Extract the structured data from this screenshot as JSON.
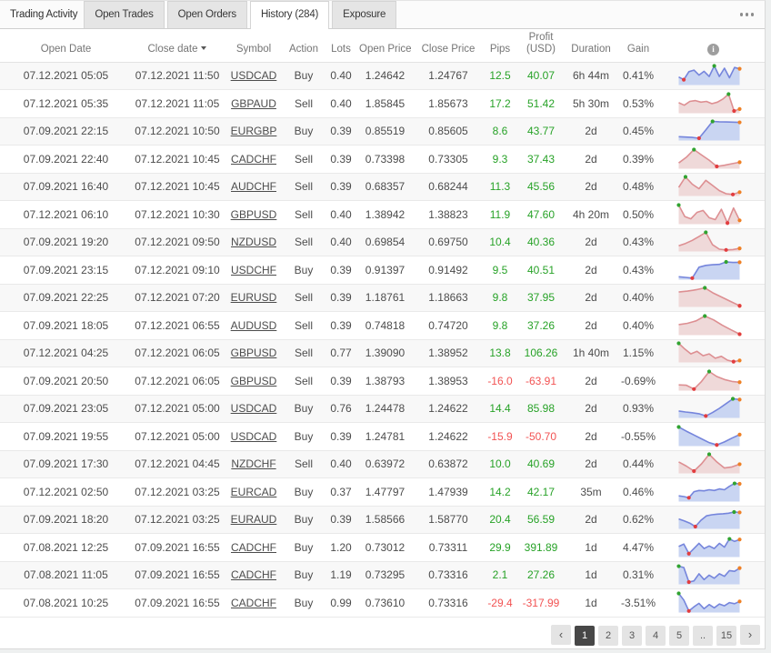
{
  "widget": {
    "title": "Trading Activity",
    "tabs": [
      {
        "label": "Open Trades",
        "active": false
      },
      {
        "label": "Open Orders",
        "active": false
      },
      {
        "label": "History (284)",
        "active": true
      },
      {
        "label": "Exposure",
        "active": false
      }
    ]
  },
  "colors": {
    "positive_text": "#27a227",
    "negative_text": "#f25353",
    "buy_line": "#7585dc",
    "buy_fill": "#c9d5f2",
    "sell_line": "#dd8f92",
    "sell_fill": "#efd9d9",
    "dot_max": "#30a330",
    "dot_min": "#e23d3f",
    "dot_last": "#ef8025"
  },
  "table": {
    "columns": [
      "Open Date",
      "Close date",
      "Symbol",
      "Action",
      "Lots",
      "Open Price",
      "Close Price",
      "Pips",
      "Profit (USD)",
      "Duration",
      "Gain"
    ],
    "sorted_by": "Close date",
    "rows": [
      {
        "open_date": "07.12.2021 05:05",
        "close_date": "07.12.2021 11:50",
        "symbol": "USDCAD",
        "action": "Buy",
        "lots": "0.40",
        "open_price": "1.24642",
        "close_price": "1.24767",
        "pips": "12.5",
        "profit": "40.07",
        "duration": "6h 44m",
        "gain": "0.41%",
        "chart_color": "buy",
        "spark": [
          0.42,
          0.28,
          0.7,
          0.78,
          0.52,
          0.72,
          0.45,
          1.0,
          0.45,
          0.88,
          0.38,
          0.92,
          0.85
        ]
      },
      {
        "open_date": "07.12.2021 05:35",
        "close_date": "07.12.2021 11:05",
        "symbol": "GBPAUD",
        "action": "Sell",
        "lots": "0.40",
        "open_price": "1.85845",
        "close_price": "1.85673",
        "pips": "17.2",
        "profit": "51.42",
        "duration": "5h 30m",
        "gain": "0.53%",
        "chart_color": "sell",
        "spark": [
          0.55,
          0.42,
          0.62,
          0.66,
          0.58,
          0.62,
          0.5,
          0.58,
          0.75,
          1.0,
          0.12,
          0.22
        ]
      },
      {
        "open_date": "07.09.2021 22:15",
        "close_date": "07.12.2021 10:50",
        "symbol": "EURGBP",
        "action": "Buy",
        "lots": "0.39",
        "open_price": "0.85519",
        "close_price": "0.85605",
        "pips": "8.6",
        "profit": "43.77",
        "duration": "2d",
        "gain": "0.45%",
        "chart_color": "buy",
        "spark": [
          0.2,
          0.18,
          0.16,
          0.12,
          0.55,
          1.0,
          0.98,
          0.97,
          0.96,
          0.95
        ]
      },
      {
        "open_date": "07.09.2021 22:40",
        "close_date": "07.12.2021 10:45",
        "symbol": "CADCHF",
        "action": "Sell",
        "lots": "0.39",
        "open_price": "0.73398",
        "close_price": "0.73305",
        "pips": "9.3",
        "profit": "37.43",
        "duration": "2d",
        "gain": "0.39%",
        "chart_color": "sell",
        "spark": [
          0.3,
          0.6,
          1.0,
          0.72,
          0.45,
          0.12,
          0.18,
          0.26,
          0.34
        ]
      },
      {
        "open_date": "07.09.2021 16:40",
        "close_date": "07.12.2021 10:45",
        "symbol": "AUDCHF",
        "action": "Sell",
        "lots": "0.39",
        "open_price": "0.68357",
        "close_price": "0.68244",
        "pips": "11.3",
        "profit": "45.56",
        "duration": "2d",
        "gain": "0.48%",
        "chart_color": "sell",
        "spark": [
          0.45,
          1.0,
          0.62,
          0.38,
          0.82,
          0.55,
          0.28,
          0.12,
          0.08,
          0.2
        ]
      },
      {
        "open_date": "07.12.2021 06:10",
        "close_date": "07.12.2021 10:30",
        "symbol": "GBPUSD",
        "action": "Sell",
        "lots": "0.40",
        "open_price": "1.38942",
        "close_price": "1.38823",
        "pips": "11.9",
        "profit": "47.60",
        "duration": "4h 20m",
        "gain": "0.50%",
        "chart_color": "sell",
        "spark": [
          1.0,
          0.4,
          0.28,
          0.62,
          0.72,
          0.34,
          0.24,
          0.78,
          0.06,
          0.85,
          0.2
        ]
      },
      {
        "open_date": "07.09.2021 19:20",
        "close_date": "07.12.2021 09:50",
        "symbol": "NZDUSD",
        "action": "Sell",
        "lots": "0.40",
        "open_price": "0.69854",
        "close_price": "0.69750",
        "pips": "10.4",
        "profit": "40.36",
        "duration": "2d",
        "gain": "0.43%",
        "chart_color": "sell",
        "spark": [
          0.3,
          0.42,
          0.58,
          0.78,
          1.0,
          0.35,
          0.12,
          0.08,
          0.1,
          0.16
        ]
      },
      {
        "open_date": "07.09.2021 23:15",
        "close_date": "07.12.2021 09:10",
        "symbol": "USDCHF",
        "action": "Buy",
        "lots": "0.39",
        "open_price": "0.91397",
        "close_price": "0.91492",
        "pips": "9.5",
        "profit": "40.51",
        "duration": "2d",
        "gain": "0.43%",
        "chart_color": "buy",
        "spark": [
          0.15,
          0.12,
          0.08,
          0.65,
          0.75,
          0.78,
          0.8,
          0.93,
          0.9,
          0.91
        ]
      },
      {
        "open_date": "07.09.2021 22:25",
        "close_date": "07.12.2021 07:20",
        "symbol": "EURUSD",
        "action": "Sell",
        "lots": "0.39",
        "open_price": "1.18761",
        "close_price": "1.18663",
        "pips": "9.8",
        "profit": "37.95",
        "duration": "2d",
        "gain": "0.40%",
        "chart_color": "sell",
        "spark": [
          0.78,
          0.83,
          0.9,
          1.0,
          0.72,
          0.5,
          0.28,
          0.06
        ]
      },
      {
        "open_date": "07.09.2021 18:05",
        "close_date": "07.12.2021 06:55",
        "symbol": "AUDUSD",
        "action": "Sell",
        "lots": "0.39",
        "open_price": "0.74818",
        "close_price": "0.74720",
        "pips": "9.8",
        "profit": "37.26",
        "duration": "2d",
        "gain": "0.40%",
        "chart_color": "sell",
        "spark": [
          0.55,
          0.62,
          0.75,
          1.0,
          0.8,
          0.52,
          0.28,
          0.05
        ]
      },
      {
        "open_date": "07.12.2021 04:25",
        "close_date": "07.12.2021 06:05",
        "symbol": "GBPUSD",
        "action": "Sell",
        "lots": "0.77",
        "open_price": "1.39090",
        "close_price": "1.38952",
        "pips": "13.8",
        "profit": "106.26",
        "duration": "1h 40m",
        "gain": "1.15%",
        "chart_color": "sell",
        "spark": [
          1.0,
          0.7,
          0.45,
          0.58,
          0.35,
          0.45,
          0.22,
          0.32,
          0.12,
          0.04,
          0.1
        ]
      },
      {
        "open_date": "07.09.2021 20:50",
        "close_date": "07.12.2021 06:05",
        "symbol": "GBPUSD",
        "action": "Sell",
        "lots": "0.39",
        "open_price": "1.38793",
        "close_price": "1.38953",
        "pips": "-16.0",
        "profit": "-63.91",
        "duration": "2d",
        "gain": "-0.69%",
        "chart_color": "sell",
        "spark": [
          0.3,
          0.28,
          0.08,
          0.48,
          1.0,
          0.74,
          0.58,
          0.48,
          0.44
        ]
      },
      {
        "open_date": "07.09.2021 23:05",
        "close_date": "07.12.2021 05:00",
        "symbol": "USDCAD",
        "action": "Buy",
        "lots": "0.76",
        "open_price": "1.24478",
        "close_price": "1.24622",
        "pips": "14.4",
        "profit": "85.98",
        "duration": "2d",
        "gain": "0.93%",
        "chart_color": "buy",
        "spark": [
          0.36,
          0.31,
          0.27,
          0.22,
          0.1,
          0.28,
          0.5,
          0.75,
          1.0,
          0.96
        ]
      },
      {
        "open_date": "07.09.2021 19:55",
        "close_date": "07.12.2021 05:00",
        "symbol": "USDCAD",
        "action": "Buy",
        "lots": "0.39",
        "open_price": "1.24781",
        "close_price": "1.24622",
        "pips": "-15.9",
        "profit": "-50.70",
        "duration": "2d",
        "gain": "-0.55%",
        "chart_color": "buy",
        "spark": [
          1.0,
          0.78,
          0.58,
          0.38,
          0.18,
          0.06,
          0.22,
          0.42,
          0.6
        ]
      },
      {
        "open_date": "07.09.2021 17:30",
        "close_date": "07.12.2021 04:45",
        "symbol": "NZDCHF",
        "action": "Sell",
        "lots": "0.40",
        "open_price": "0.63972",
        "close_price": "0.63872",
        "pips": "10.0",
        "profit": "40.69",
        "duration": "2d",
        "gain": "0.44%",
        "chart_color": "sell",
        "spark": [
          0.6,
          0.38,
          0.12,
          0.5,
          1.0,
          0.6,
          0.28,
          0.34,
          0.48
        ]
      },
      {
        "open_date": "07.12.2021 02:50",
        "close_date": "07.12.2021 03:25",
        "symbol": "EURCAD",
        "action": "Buy",
        "lots": "0.37",
        "open_price": "1.47797",
        "close_price": "1.47939",
        "pips": "14.2",
        "profit": "42.17",
        "duration": "35m",
        "gain": "0.46%",
        "chart_color": "buy",
        "spark": [
          0.3,
          0.26,
          0.2,
          0.52,
          0.58,
          0.56,
          0.62,
          0.58,
          0.66,
          0.62,
          0.8,
          0.95,
          0.93
        ]
      },
      {
        "open_date": "07.09.2021 18:20",
        "close_date": "07.12.2021 03:25",
        "symbol": "EURAUD",
        "action": "Buy",
        "lots": "0.39",
        "open_price": "1.58566",
        "close_price": "1.58770",
        "pips": "20.4",
        "profit": "56.59",
        "duration": "2d",
        "gain": "0.62%",
        "chart_color": "buy",
        "spark": [
          0.52,
          0.42,
          0.3,
          0.12,
          0.45,
          0.68,
          0.74,
          0.77,
          0.79,
          0.82,
          0.88,
          0.86
        ]
      },
      {
        "open_date": "07.08.2021 12:25",
        "close_date": "07.09.2021 16:55",
        "symbol": "CADCHF",
        "action": "Buy",
        "lots": "1.20",
        "open_price": "0.73012",
        "close_price": "0.73311",
        "pips": "29.9",
        "profit": "391.89",
        "duration": "1d",
        "gain": "4.47%",
        "chart_color": "buy",
        "spark": [
          0.55,
          0.68,
          0.18,
          0.45,
          0.72,
          0.45,
          0.58,
          0.45,
          0.72,
          0.52,
          0.95,
          0.82,
          0.92
        ]
      },
      {
        "open_date": "07.08.2021 11:05",
        "close_date": "07.09.2021 16:55",
        "symbol": "CADCHF",
        "action": "Buy",
        "lots": "1.19",
        "open_price": "0.73295",
        "close_price": "0.73316",
        "pips": "2.1",
        "profit": "27.26",
        "duration": "1d",
        "gain": "0.31%",
        "chart_color": "buy",
        "spark": [
          0.95,
          0.88,
          0.12,
          0.18,
          0.55,
          0.25,
          0.48,
          0.32,
          0.55,
          0.42,
          0.72,
          0.68,
          0.85
        ]
      },
      {
        "open_date": "07.08.2021 10:25",
        "close_date": "07.09.2021 16:55",
        "symbol": "CADCHF",
        "action": "Buy",
        "lots": "0.99",
        "open_price": "0.73610",
        "close_price": "0.73316",
        "pips": "-29.4",
        "profit": "-317.99",
        "duration": "1d",
        "gain": "-3.51%",
        "chart_color": "buy",
        "spark": [
          1.0,
          0.65,
          0.08,
          0.3,
          0.48,
          0.2,
          0.42,
          0.25,
          0.45,
          0.35,
          0.52,
          0.46,
          0.58
        ]
      }
    ]
  },
  "pagination": {
    "prev": "‹",
    "pages": [
      "1",
      "2",
      "3",
      "4",
      "5",
      "..",
      "15"
    ],
    "active_page": "1",
    "next": "›"
  }
}
